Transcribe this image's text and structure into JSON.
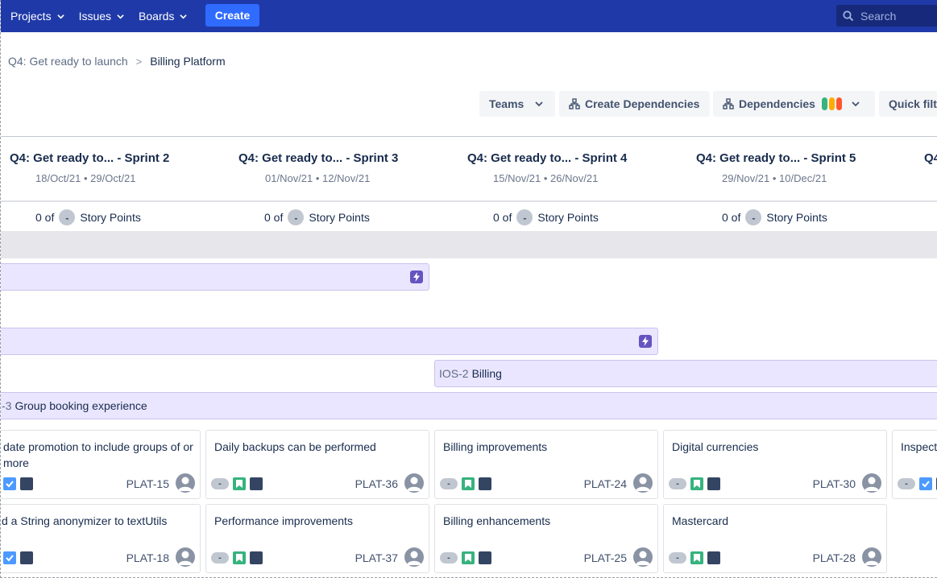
{
  "nav": {
    "projects": "Projects",
    "issues": "Issues",
    "boards": "Boards",
    "create": "Create",
    "search_placeholder": "Search"
  },
  "breadcrumb": {
    "parent": "Q4: Get ready to launch",
    "separator": ">",
    "current": "Billing Platform"
  },
  "toolbar": {
    "teams": "Teams",
    "create_dependencies": "Create Dependencies",
    "dependencies": "Dependencies",
    "quick_filters": "Quick filters",
    "dependency_colors": [
      "#36b37e",
      "#ffab00",
      "#ff5630"
    ]
  },
  "sprints": [
    {
      "title": "Q4: Get ready to... - Sprint 2",
      "dates": "18/Oct/21 • 29/Oct/21",
      "points_prefix": "0 of",
      "points_value": "-",
      "points_suffix": "Story Points"
    },
    {
      "title": "Q4: Get ready to... - Sprint 3",
      "dates": "01/Nov/21 • 12/Nov/21",
      "points_prefix": "0 of",
      "points_value": "-",
      "points_suffix": "Story Points"
    },
    {
      "title": "Q4: Get ready to... - Sprint 4",
      "dates": "15/Nov/21 • 26/Nov/21",
      "points_prefix": "0 of",
      "points_value": "-",
      "points_suffix": "Story Points"
    },
    {
      "title": "Q4: Get ready to... - Sprint 5",
      "dates": "29/Nov/21 • 10/Dec/21",
      "points_prefix": "0 of",
      "points_value": "-",
      "points_suffix": "Story Points"
    },
    {
      "title": "Q4"
    }
  ],
  "epics": [
    {
      "key": "IOS-2",
      "name": "Billing"
    },
    {
      "key": "-3",
      "name": "Group booking experience"
    }
  ],
  "cards": [
    {
      "title": "date promotion to include groups of or more",
      "key": "PLAT-15",
      "estimate": "",
      "icons": [
        "task",
        "priority"
      ]
    },
    {
      "title": "Daily backups can be performed",
      "key": "PLAT-36",
      "estimate": "-",
      "icons": [
        "story",
        "priority"
      ]
    },
    {
      "title": "Billing improvements",
      "key": "PLAT-24",
      "estimate": "-",
      "icons": [
        "story",
        "priority"
      ]
    },
    {
      "title": "Digital currencies",
      "key": "PLAT-30",
      "estimate": "-",
      "icons": [
        "story",
        "priority"
      ]
    },
    {
      "title": "Inspect",
      "key": "",
      "estimate": "-",
      "icons": [
        "task",
        "priority"
      ]
    },
    {
      "title": "d a String anonymizer to textUtils",
      "key": "PLAT-18",
      "estimate": "",
      "icons": [
        "task",
        "priority"
      ]
    },
    {
      "title": "Performance improvements",
      "key": "PLAT-37",
      "estimate": "-",
      "icons": [
        "story",
        "priority"
      ]
    },
    {
      "title": "Billing enhancements",
      "key": "PLAT-25",
      "estimate": "-",
      "icons": [
        "story",
        "priority"
      ]
    },
    {
      "title": "Mastercard",
      "key": "PLAT-28",
      "estimate": "-",
      "icons": [
        "story",
        "priority"
      ]
    }
  ]
}
